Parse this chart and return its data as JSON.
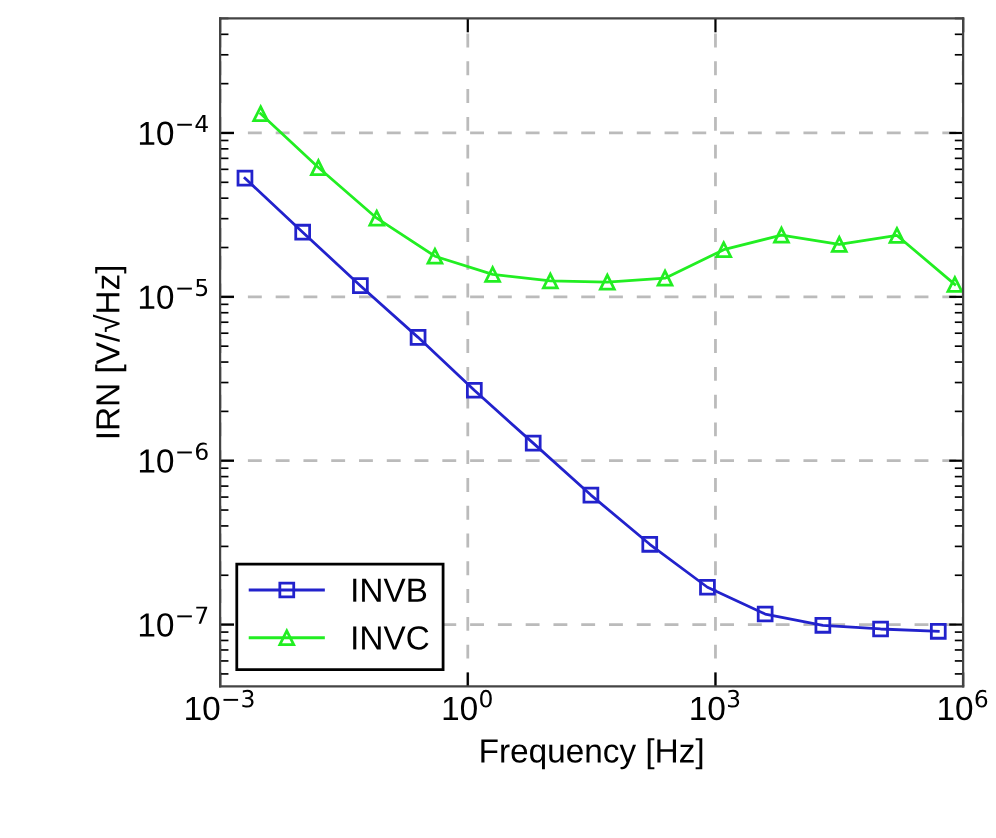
{
  "chart_data": {
    "type": "line",
    "xlabel": "Frequency [Hz]",
    "ylabel": "IRN [V/√Hz]",
    "log": "xy",
    "xlim": [
      0.001,
      1000000
    ],
    "ylim": [
      4.2e-08,
      0.0005
    ],
    "xticks": [
      {
        "value": 0.001,
        "label": "10$^{−3}$"
      },
      {
        "value": 1,
        "label": "10$^{0}$"
      },
      {
        "value": 1000,
        "label": "10$^{3}$"
      },
      {
        "value": 1000000,
        "label": "10$^{6}$"
      }
    ],
    "yticks": [
      {
        "value": 1e-07,
        "label": "10$^{−7}$"
      },
      {
        "value": 1e-06,
        "label": "10$^{−6}$"
      },
      {
        "value": 1e-05,
        "label": "10$^{−5}$"
      },
      {
        "value": 0.0001,
        "label": "10$^{−4}$"
      }
    ],
    "grid": true,
    "legend": "bottom left",
    "line_style": "solid",
    "series": [
      {
        "name": "INVB",
        "color": "#2222cc",
        "marker": "square",
        "x": [
          0.002,
          0.01,
          0.05,
          0.25,
          1.2,
          6.2,
          31,
          160,
          800,
          4000,
          20000,
          100000,
          500000
        ],
        "values": [
          5.3e-05,
          2.48e-05,
          1.17e-05,
          5.66e-06,
          2.69e-06,
          1.28e-06,
          6.17e-07,
          3.09e-07,
          1.69e-07,
          1.16e-07,
          9.9e-08,
          9.4e-08,
          9.1e-08
        ]
      },
      {
        "name": "INVC",
        "color": "#22ee22",
        "marker": "triangle",
        "x": [
          0.0031,
          0.0155,
          0.079,
          0.4,
          2,
          10,
          49,
          245,
          1260,
          6300,
          31600,
          158000,
          794000
        ],
        "values": [
          0.000131,
          6.15e-05,
          3.02e-05,
          1.77e-05,
          1.37e-05,
          1.25e-05,
          1.23e-05,
          1.3e-05,
          1.94e-05,
          2.38e-05,
          2.09e-05,
          2.37e-05,
          1.19e-05
        ]
      }
    ]
  }
}
